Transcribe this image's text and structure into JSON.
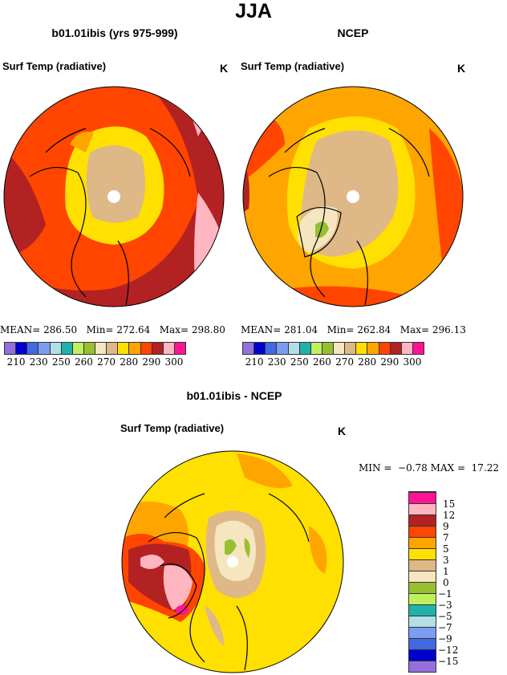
{
  "title": "JJA",
  "panels": [
    {
      "subtitle": "b01.01ibis (yrs 975-999)",
      "variable": "Surf Temp (radiative)",
      "units": "K",
      "stats": {
        "mean_label": "MEAN=",
        "mean": "286.50",
        "min_label": "Min=",
        "min": "272.64",
        "max_label": "Max=",
        "max": "298.80"
      }
    },
    {
      "subtitle": "NCEP",
      "variable": "Surf Temp (radiative)",
      "units": "K",
      "stats": {
        "mean_label": "MEAN=",
        "mean": "281.04",
        "min_label": "Min=",
        "min": "262.84",
        "max_label": "Max=",
        "max": "296.13"
      }
    }
  ],
  "diff": {
    "subtitle": "b01.01ibis - NCEP",
    "variable": "Surf Temp (radiative)",
    "units": "K",
    "min_label": "MIN =",
    "min": "−0.78",
    "max_label": "MAX =",
    "max": "17.22"
  },
  "colors": [
    "#9370DB",
    "#0000CD",
    "#4169E1",
    "#7B9CF0",
    "#B0E0E6",
    "#20B2AA",
    "#C0F060",
    "#98BF30",
    "#F5E6C0",
    "#DEB887",
    "#FFE000",
    "#FFA500",
    "#FF4500",
    "#B22222",
    "#FFB6C1",
    "#FF1493"
  ],
  "abs_labels": [
    "210",
    "230",
    "250",
    "260",
    "270",
    "280",
    "290",
    "300"
  ],
  "diff_labels": [
    "−15",
    "−12",
    "−9",
    "−7",
    "−5",
    "−3",
    "−1",
    "0",
    "1",
    "3",
    "5",
    "7",
    "9",
    "12",
    "15"
  ]
}
